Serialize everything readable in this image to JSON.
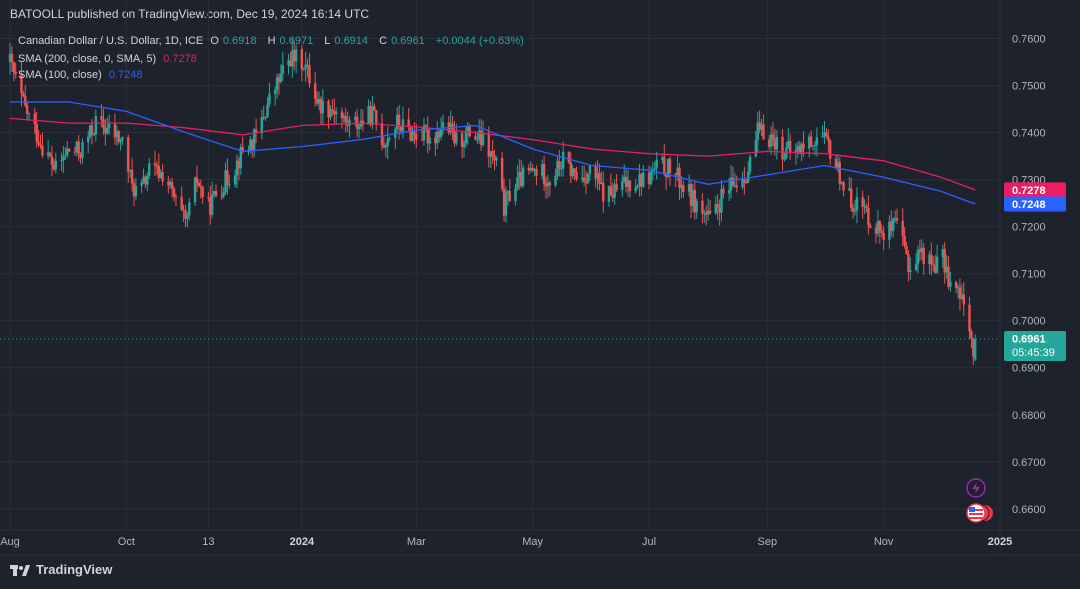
{
  "header": {
    "publisher": "BATOOLL published on TradingView.com, Dec 19, 2024 16:14 UTC"
  },
  "legend": {
    "symbol": "Canadian Dollar / U.S. Dollar, 1D, ICE",
    "o_label": "O",
    "o_value": "0.6918",
    "h_label": "H",
    "h_value": "0.6971",
    "l_label": "L",
    "l_value": "0.6914",
    "c_label": "C",
    "c_value": "0.6961",
    "change": "+0.0044 (+0.63%)",
    "sma200_label": "SMA (200, close, 0, SMA, 5)",
    "sma200_value": "0.7278",
    "sma100_label": "SMA (100, close)",
    "sma100_value": "0.7248"
  },
  "footer": {
    "brand": "TradingView"
  },
  "colors": {
    "up": "#26a69a",
    "down": "#ef5350",
    "sma200": "#e91e63",
    "sma100": "#2962ff",
    "background": "#1e222d",
    "grid": "#2a2e39"
  },
  "price_badges": {
    "sma200": "0.7278",
    "sma100": "0.7248",
    "last_price": "0.6961",
    "countdown": "05:45:39"
  },
  "chart_data": {
    "type": "candlestick",
    "title": "Canadian Dollar / U.S. Dollar, 1D, ICE",
    "ylim": [
      0.6555,
      0.7635
    ],
    "y_ticks": [
      "0.7600",
      "0.7500",
      "0.7400",
      "0.7300",
      "0.7200",
      "0.7100",
      "0.7000",
      "0.6900",
      "0.6800",
      "0.6700",
      "0.6600"
    ],
    "x_ticks": [
      "Aug",
      "Oct",
      "13",
      "2024",
      "Mar",
      "May",
      "Jul",
      "Sep",
      "Nov",
      "2025"
    ],
    "x_ticks_bold": [
      false,
      false,
      false,
      true,
      false,
      false,
      false,
      false,
      false,
      true
    ],
    "x_range": [
      "2023-08-01",
      "2025-01-01"
    ],
    "x_tick_dates": [
      "2023-08-01",
      "2023-10-01",
      "2023-11-13",
      "2024-01-01",
      "2024-03-01",
      "2024-05-01",
      "2024-07-01",
      "2024-09-01",
      "2024-11-01",
      "2025-01-01"
    ],
    "last_price": 0.6961,
    "grid": true,
    "price_path": [
      [
        "2023-08-01",
        0.755
      ],
      [
        "2023-08-08",
        0.746
      ],
      [
        "2023-08-17",
        0.738
      ],
      [
        "2023-08-25",
        0.732
      ],
      [
        "2023-08-31",
        0.736
      ],
      [
        "2023-09-07",
        0.736
      ],
      [
        "2023-09-15",
        0.742
      ],
      [
        "2023-09-22",
        0.7405
      ],
      [
        "2023-09-29",
        0.738
      ],
      [
        "2023-10-04",
        0.7285
      ],
      [
        "2023-10-08",
        0.727
      ],
      [
        "2023-10-13",
        0.732
      ],
      [
        "2023-10-21",
        0.731
      ],
      [
        "2023-10-28",
        0.724
      ],
      [
        "2023-11-01",
        0.7205
      ],
      [
        "2023-11-07",
        0.73
      ],
      [
        "2023-11-13",
        0.724
      ],
      [
        "2023-11-17",
        0.727
      ],
      [
        "2023-11-26",
        0.732
      ],
      [
        "2023-12-01",
        0.736
      ],
      [
        "2023-12-08",
        0.739
      ],
      [
        "2023-12-15",
        0.747
      ],
      [
        "2023-12-26",
        0.756
      ],
      [
        "2024-01-02",
        0.755
      ],
      [
        "2024-01-10",
        0.746
      ],
      [
        "2024-01-18",
        0.745
      ],
      [
        "2024-01-24",
        0.742
      ],
      [
        "2024-01-31",
        0.742
      ],
      [
        "2024-02-07",
        0.744
      ],
      [
        "2024-02-13",
        0.738
      ],
      [
        "2024-02-20",
        0.742
      ],
      [
        "2024-02-27",
        0.74
      ],
      [
        "2024-03-04",
        0.7395
      ],
      [
        "2024-03-10",
        0.739
      ],
      [
        "2024-03-16",
        0.742
      ],
      [
        "2024-03-22",
        0.738
      ],
      [
        "2024-03-29",
        0.74
      ],
      [
        "2024-04-05",
        0.738
      ],
      [
        "2024-04-12",
        0.733
      ],
      [
        "2024-04-16",
        0.724
      ],
      [
        "2024-04-20",
        0.728
      ],
      [
        "2024-04-27",
        0.731
      ],
      [
        "2024-05-04",
        0.732
      ],
      [
        "2024-05-10",
        0.73
      ],
      [
        "2024-05-17",
        0.734
      ],
      [
        "2024-05-25",
        0.73
      ],
      [
        "2024-06-01",
        0.732
      ],
      [
        "2024-06-07",
        0.727
      ],
      [
        "2024-06-12",
        0.727
      ],
      [
        "2024-06-18",
        0.729
      ],
      [
        "2024-06-24",
        0.73
      ],
      [
        "2024-06-30",
        0.73
      ],
      [
        "2024-07-06",
        0.733
      ],
      [
        "2024-07-13",
        0.732
      ],
      [
        "2024-07-20",
        0.728
      ],
      [
        "2024-07-27",
        0.724
      ],
      [
        "2024-08-03",
        0.721
      ],
      [
        "2024-08-08",
        0.726
      ],
      [
        "2024-08-15",
        0.729
      ],
      [
        "2024-08-22",
        0.732
      ],
      [
        "2024-08-27",
        0.74
      ],
      [
        "2024-09-03",
        0.739
      ],
      [
        "2024-09-10",
        0.736
      ],
      [
        "2024-09-16",
        0.736
      ],
      [
        "2024-09-23",
        0.738
      ],
      [
        "2024-09-29",
        0.739
      ],
      [
        "2024-10-03",
        0.737
      ],
      [
        "2024-10-09",
        0.731
      ],
      [
        "2024-10-14",
        0.726
      ],
      [
        "2024-10-21",
        0.724
      ],
      [
        "2024-10-28",
        0.72
      ],
      [
        "2024-11-03",
        0.719
      ],
      [
        "2024-11-08",
        0.72
      ],
      [
        "2024-11-12",
        0.715
      ],
      [
        "2024-11-15",
        0.711
      ],
      [
        "2024-11-20",
        0.715
      ],
      [
        "2024-11-26",
        0.712
      ],
      [
        "2024-12-02",
        0.713
      ],
      [
        "2024-12-06",
        0.708
      ],
      [
        "2024-12-11",
        0.705
      ],
      [
        "2024-12-16",
        0.7
      ],
      [
        "2024-12-18",
        0.692
      ],
      [
        "2024-12-19",
        0.6961
      ]
    ],
    "series": [
      {
        "name": "SMA (200, close, 0, SMA, 5)",
        "points": [
          [
            "2023-08-01",
            0.743
          ],
          [
            "2023-09-01",
            0.742
          ],
          [
            "2023-10-01",
            0.742
          ],
          [
            "2023-11-01",
            0.741
          ],
          [
            "2023-12-01",
            0.7395
          ],
          [
            "2024-01-01",
            0.7415
          ],
          [
            "2024-02-01",
            0.742
          ],
          [
            "2024-03-01",
            0.7412
          ],
          [
            "2024-04-01",
            0.74
          ],
          [
            "2024-05-01",
            0.7385
          ],
          [
            "2024-06-01",
            0.7365
          ],
          [
            "2024-07-01",
            0.7355
          ],
          [
            "2024-08-01",
            0.735
          ],
          [
            "2024-09-01",
            0.736
          ],
          [
            "2024-10-01",
            0.7355
          ],
          [
            "2024-11-01",
            0.734
          ],
          [
            "2024-12-01",
            0.7305
          ],
          [
            "2024-12-19",
            0.7278
          ]
        ]
      },
      {
        "name": "SMA (100, close)",
        "points": [
          [
            "2023-08-01",
            0.7465
          ],
          [
            "2023-09-01",
            0.7465
          ],
          [
            "2023-10-01",
            0.7445
          ],
          [
            "2023-11-01",
            0.74
          ],
          [
            "2023-12-01",
            0.736
          ],
          [
            "2024-01-01",
            0.737
          ],
          [
            "2024-02-01",
            0.7385
          ],
          [
            "2024-03-01",
            0.7405
          ],
          [
            "2024-04-01",
            0.7415
          ],
          [
            "2024-05-01",
            0.7365
          ],
          [
            "2024-06-01",
            0.733
          ],
          [
            "2024-07-01",
            0.732
          ],
          [
            "2024-08-01",
            0.729
          ],
          [
            "2024-09-01",
            0.731
          ],
          [
            "2024-10-01",
            0.733
          ],
          [
            "2024-11-01",
            0.7305
          ],
          [
            "2024-12-01",
            0.7275
          ],
          [
            "2024-12-19",
            0.7248
          ]
        ]
      }
    ]
  }
}
